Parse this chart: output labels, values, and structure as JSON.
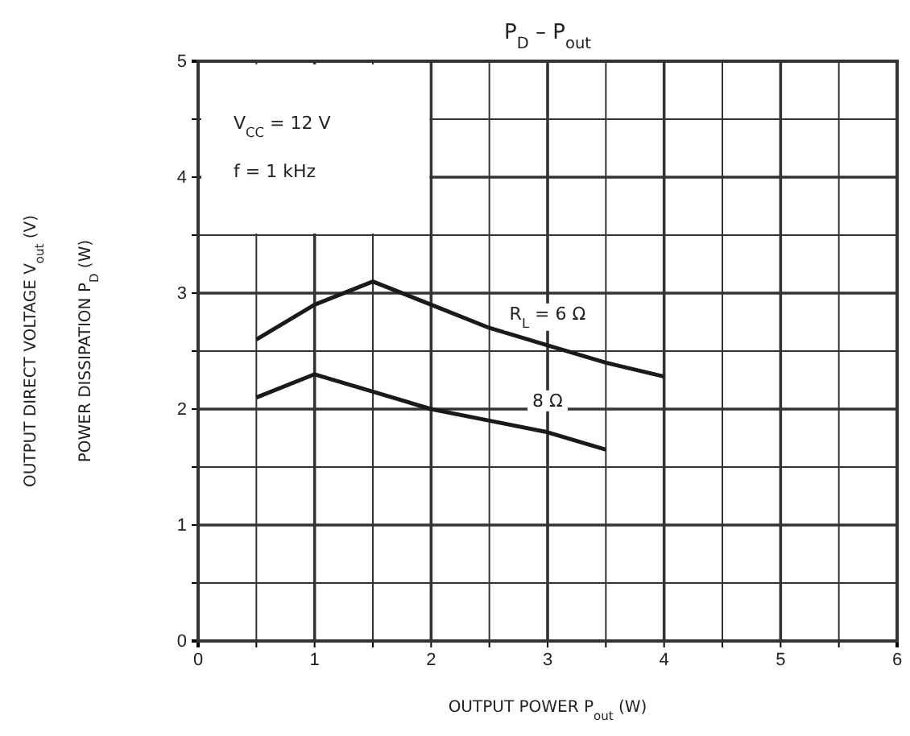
{
  "chart_data": {
    "type": "line",
    "title": "P$_{D}$  –  P$_{out}$",
    "xlabel": "OUTPUT POWER   P$_{out}$   (W)",
    "ylabel": "OUTPUT DIRECT VOLTAGE   V$_{out}$   (V)\nPOWER DISSIPATION   P$_{D}$   (W)",
    "annotations": [
      "V$_{CC}$ = 12 V",
      "f = 1 kHz"
    ],
    "xlim": [
      0,
      6
    ],
    "ylim": [
      0,
      5
    ],
    "xticks": [
      0,
      {
        "value": 0.5,
        "label": null
      },
      1,
      {
        "value": 1.5,
        "label": null
      },
      2,
      {
        "value": 2.5,
        "label": null
      },
      3,
      {
        "value": 3.5,
        "label": null
      },
      4,
      {
        "value": 4.5,
        "label": null
      },
      5,
      {
        "value": 5.5,
        "label": null
      },
      6
    ],
    "yticks": [
      0,
      {
        "value": 0.5,
        "label": null
      },
      1,
      {
        "value": 1.5,
        "label": null
      },
      2,
      {
        "value": 2.5,
        "label": null
      },
      3,
      {
        "value": 3.5,
        "label": null
      },
      4,
      {
        "value": 4.5,
        "label": null
      },
      5
    ],
    "grid": true,
    "marker": "none",
    "line_style": "solid",
    "series": [
      {
        "name": "R$_{L}$ = 6 Ω",
        "color": "#1a1a1a",
        "x": [
          0.5,
          1.0,
          1.5,
          2.0,
          2.5,
          3.0,
          3.5,
          4.0
        ],
        "values": [
          2.6,
          2.9,
          3.1,
          2.9,
          2.7,
          2.55,
          2.4,
          2.28
        ]
      },
      {
        "name": "8 Ω",
        "color": "#1a1a1a",
        "x": [
          0.5,
          1.0,
          1.5,
          2.0,
          2.5,
          3.0,
          3.5
        ],
        "values": [
          2.1,
          2.3,
          2.15,
          2.0,
          1.9,
          1.8,
          1.65
        ]
      }
    ]
  }
}
